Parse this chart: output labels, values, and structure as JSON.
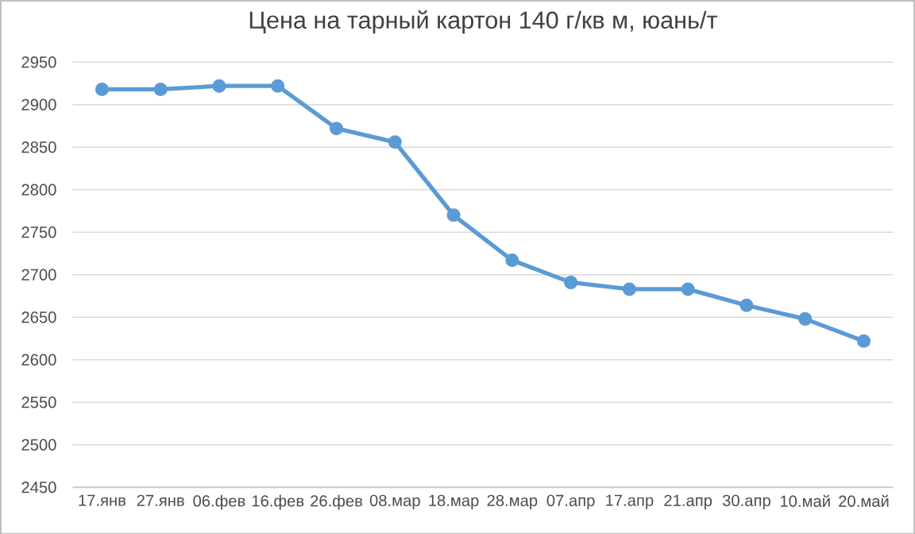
{
  "chart_data": {
    "type": "line",
    "title": "Цена на тарный картон 140 г/кв м, юань/т",
    "categories": [
      "17.янв",
      "27.янв",
      "06.фев",
      "16.фев",
      "26.фев",
      "08.мар",
      "18.мар",
      "28.мар",
      "07.апр",
      "17.апр",
      "21.апр",
      "30.апр",
      "10.май",
      "20.май"
    ],
    "series": [
      {
        "color": "#5b9bd5",
        "values": [
          2918,
          2918,
          2922,
          2922,
          2872,
          2856,
          2770,
          2717,
          2691,
          2683,
          2683,
          2664,
          2648,
          2622
        ]
      }
    ],
    "ylim": [
      2450,
      2950
    ],
    "yticks": [
      2450,
      2500,
      2550,
      2600,
      2650,
      2700,
      2750,
      2800,
      2850,
      2900,
      2950
    ],
    "grid": "y",
    "marker": "circle",
    "line_style": "solid"
  }
}
